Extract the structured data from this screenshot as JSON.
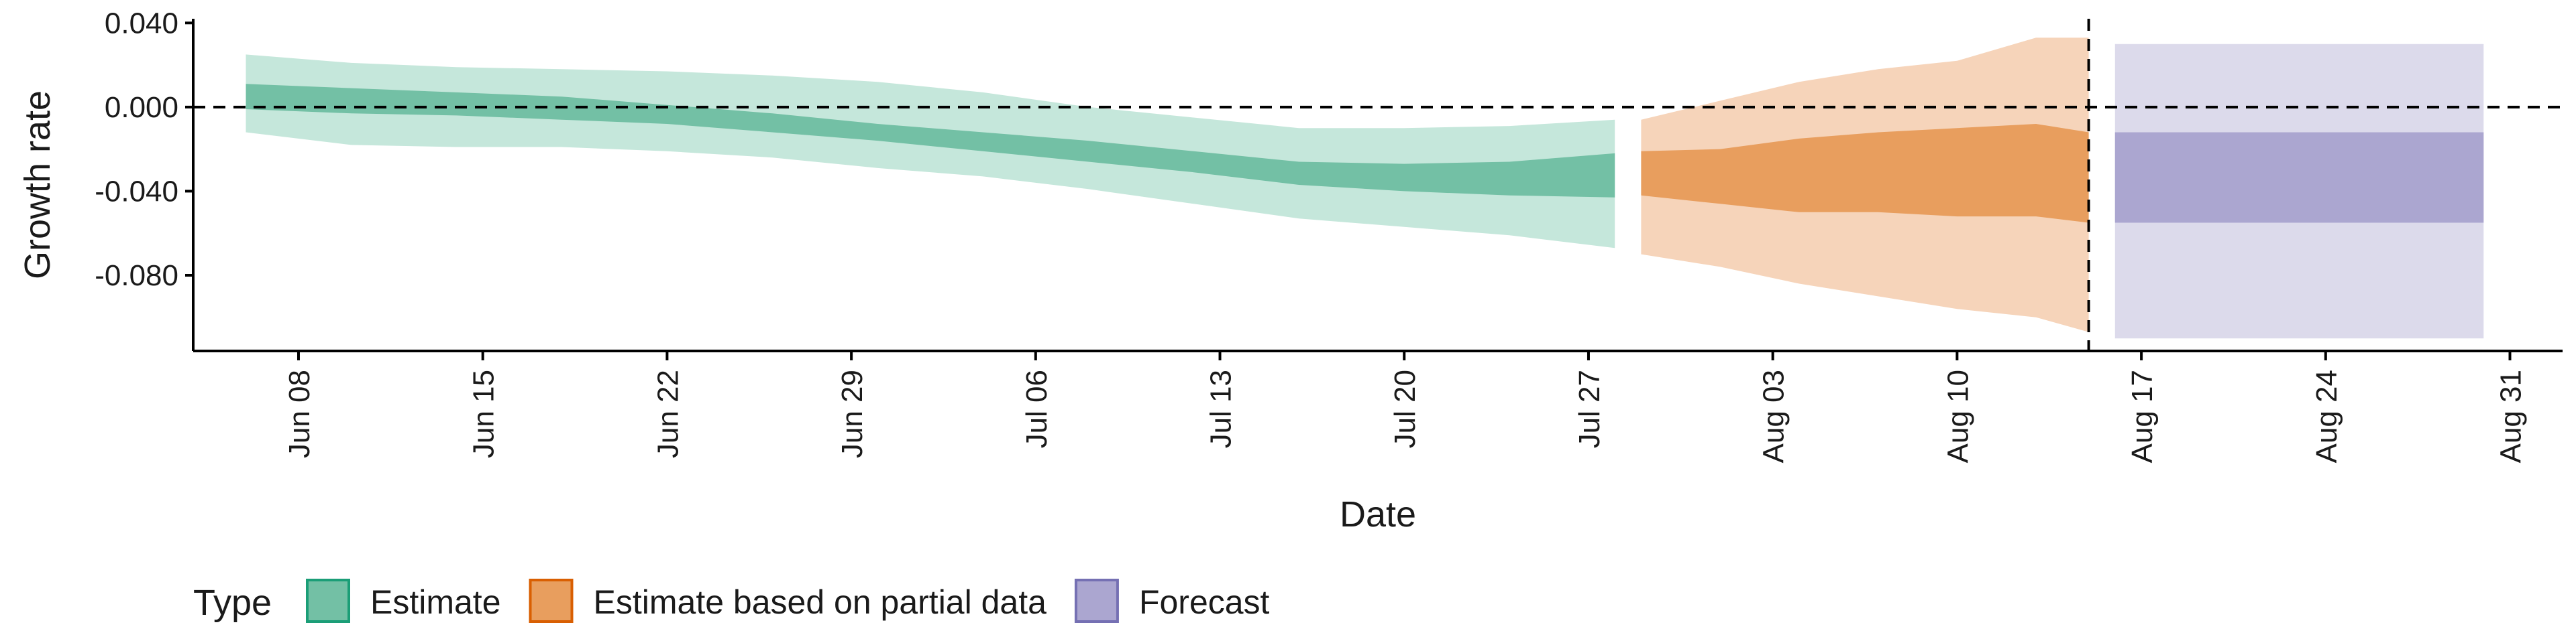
{
  "chart_data": {
    "type": "area",
    "title": "",
    "xlabel": "Date",
    "ylabel": "Growth rate",
    "x_range": [
      "2020-06-04",
      "2020-09-02"
    ],
    "ylim": [
      -0.116,
      0.042
    ],
    "y_ticks": [
      0.04,
      0.0,
      -0.04,
      -0.08
    ],
    "y_tick_labels": [
      "0.040",
      "0.000",
      "-0.040",
      "-0.080"
    ],
    "x_ticks": [
      "2020-06-08",
      "2020-06-15",
      "2020-06-22",
      "2020-06-29",
      "2020-07-06",
      "2020-07-13",
      "2020-07-20",
      "2020-07-27",
      "2020-08-03",
      "2020-08-10",
      "2020-08-17",
      "2020-08-24",
      "2020-08-31"
    ],
    "x_tick_labels": [
      "Jun 08",
      "Jun 15",
      "Jun 22",
      "Jun 29",
      "Jul 06",
      "Jul 13",
      "Jul 20",
      "Jul 27",
      "Aug 03",
      "Aug 10",
      "Aug 17",
      "Aug 24",
      "Aug 31"
    ],
    "reference_lines": [
      {
        "axis": "y",
        "value": 0.0,
        "style": "dashed"
      },
      {
        "axis": "x",
        "value": "2020-08-15",
        "style": "dashed"
      }
    ],
    "grid": false,
    "legend": {
      "title": "Type",
      "position": "bottom-left",
      "entries": [
        {
          "label": "Estimate",
          "fill": "#73C0A5",
          "stroke": "#1B9E77"
        },
        {
          "label": "Estimate based on partial data",
          "fill": "#E89E5E",
          "stroke": "#D95F02"
        },
        {
          "label": "Forecast",
          "fill": "#ABA6D0",
          "stroke": "#7570B3"
        }
      ]
    },
    "series": [
      {
        "name": "Estimate",
        "color_outer": "#C5E7DB",
        "color_inner": "#73C0A5",
        "x": [
          "2020-06-06",
          "2020-06-10",
          "2020-06-14",
          "2020-06-18",
          "2020-06-22",
          "2020-06-26",
          "2020-06-30",
          "2020-07-04",
          "2020-07-08",
          "2020-07-12",
          "2020-07-16",
          "2020-07-20",
          "2020-07-24",
          "2020-07-28"
        ],
        "outer_lower": [
          -0.012,
          -0.018,
          -0.019,
          -0.019,
          -0.021,
          -0.024,
          -0.029,
          -0.033,
          -0.039,
          -0.046,
          -0.053,
          -0.057,
          -0.061,
          -0.067
        ],
        "inner_lower": [
          -0.001,
          -0.003,
          -0.004,
          -0.006,
          -0.008,
          -0.012,
          -0.016,
          -0.021,
          -0.026,
          -0.031,
          -0.037,
          -0.04,
          -0.042,
          -0.043
        ],
        "inner_upper": [
          0.011,
          0.009,
          0.007,
          0.005,
          0.001,
          -0.003,
          -0.008,
          -0.012,
          -0.016,
          -0.021,
          -0.026,
          -0.027,
          -0.026,
          -0.022
        ],
        "outer_upper": [
          0.025,
          0.021,
          0.019,
          0.018,
          0.017,
          0.015,
          0.012,
          0.007,
          0.0,
          -0.005,
          -0.01,
          -0.01,
          -0.009,
          -0.006
        ]
      },
      {
        "name": "Estimate based on partial data",
        "color_outer": "#F6D4BA",
        "color_inner": "#E89E5E",
        "x": [
          "2020-07-29",
          "2020-08-01",
          "2020-08-04",
          "2020-08-07",
          "2020-08-10",
          "2020-08-13",
          "2020-08-15"
        ],
        "outer_lower": [
          -0.07,
          -0.076,
          -0.084,
          -0.09,
          -0.096,
          -0.1,
          -0.107
        ],
        "inner_lower": [
          -0.042,
          -0.046,
          -0.05,
          -0.05,
          -0.052,
          -0.052,
          -0.055
        ],
        "inner_upper": [
          -0.021,
          -0.02,
          -0.015,
          -0.012,
          -0.01,
          -0.008,
          -0.012
        ],
        "outer_upper": [
          -0.006,
          0.003,
          0.012,
          0.018,
          0.022,
          0.033,
          0.033
        ]
      },
      {
        "name": "Forecast",
        "color_outer": "#DCDAEB",
        "color_inner": "#ABA6D0",
        "x": [
          "2020-08-16",
          "2020-08-30"
        ],
        "outer_lower": [
          -0.11,
          -0.11
        ],
        "inner_lower": [
          -0.055,
          -0.055
        ],
        "inner_upper": [
          -0.012,
          -0.012
        ],
        "outer_upper": [
          0.03,
          0.03
        ]
      }
    ]
  }
}
